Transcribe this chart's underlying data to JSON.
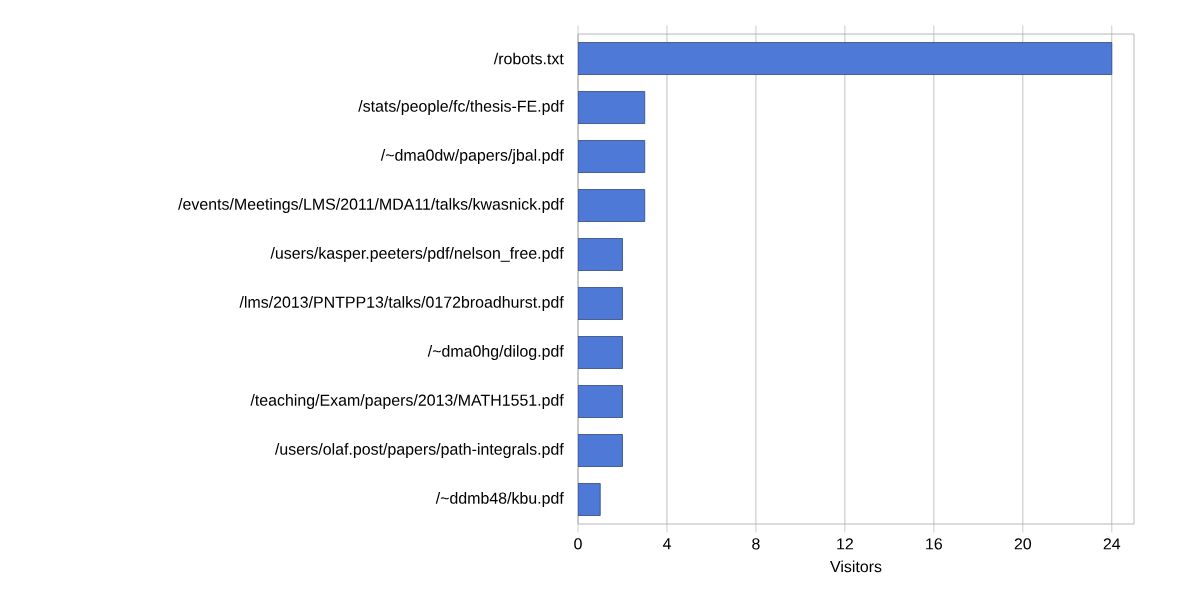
{
  "chart_data": {
    "type": "bar",
    "orientation": "horizontal",
    "xlabel": "Visitors",
    "categories": [
      "/robots.txt",
      "/stats/people/fc/thesis-FE.pdf",
      "/~dma0dw/papers/jbal.pdf",
      "/events/Meetings/LMS/2011/MDA11/talks/kwasnick.pdf",
      "/users/kasper.peeters/pdf/nelson_free.pdf",
      "/lms/2013/PNTPP13/talks/0172broadhurst.pdf",
      "/~dma0hg/dilog.pdf",
      "/teaching/Exam/papers/2013/MATH1551.pdf",
      "/users/olaf.post/papers/path-integrals.pdf",
      "/~ddmb48/kbu.pdf"
    ],
    "values": [
      24,
      3,
      3,
      3,
      2,
      2,
      2,
      2,
      2,
      1
    ],
    "color": "#4f79d6",
    "xlim": [
      0,
      25
    ],
    "xticks": [
      0,
      4,
      8,
      12,
      16,
      20,
      24
    ],
    "grid": "x"
  }
}
